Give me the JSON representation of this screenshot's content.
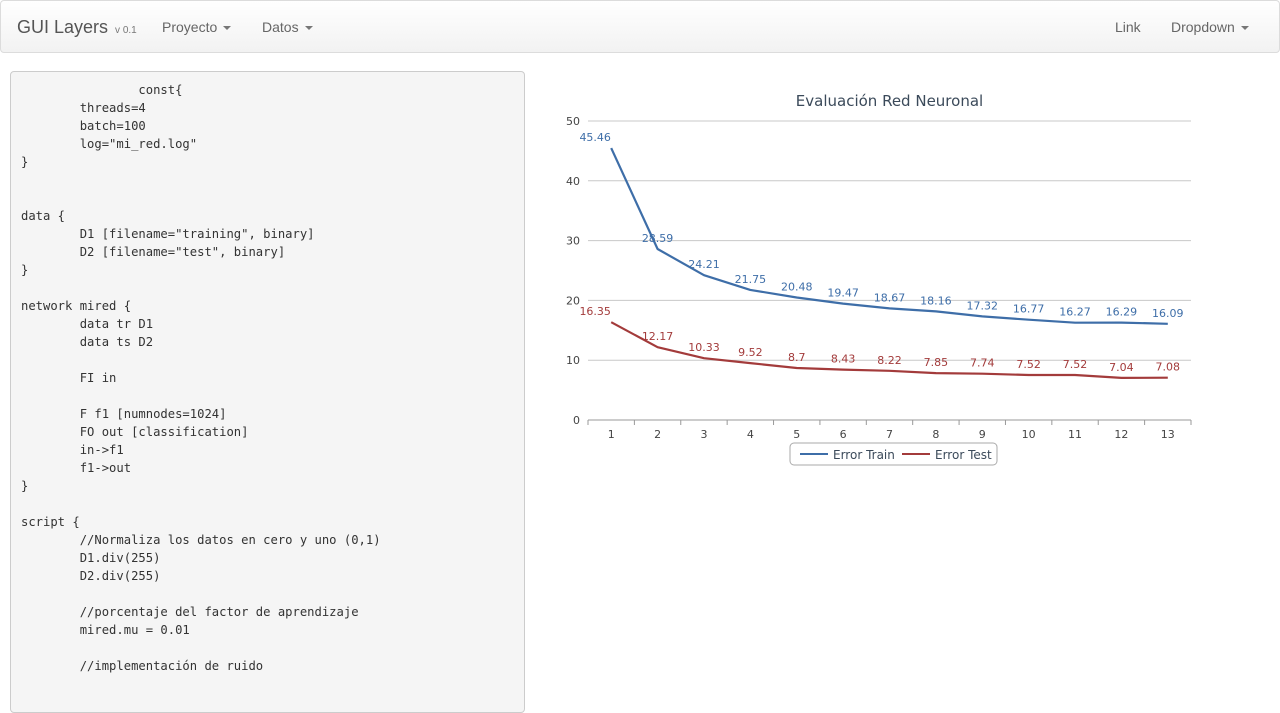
{
  "navbar": {
    "brand": "GUI Layers",
    "version": "v 0.1",
    "menu_proyecto": "Proyecto",
    "menu_datos": "Datos",
    "link": "Link",
    "dropdown": "Dropdown"
  },
  "editor": {
    "code": "\t\tconst{\n\tthreads=4\n\tbatch=100\n\tlog=\"mi_red.log\"\n}\n\n\ndata {\n\tD1 [filename=\"training\", binary]\n\tD2 [filename=\"test\", binary]\n}\n\nnetwork mired {\n\tdata tr D1\n\tdata ts D2\n\n\tFI in\n\n\tF f1 [numnodes=1024]\n\tFO out [classification]\n\tin->f1\n\tf1->out\n}\n\nscript {\n\t//Normaliza los datos en cero y uno (0,1)\n\tD1.div(255)\n\tD2.div(255)\n\n\t//porcentaje del factor de aprendizaje\n\tmired.mu = 0.01\n\n\t//implementación de ruido"
  },
  "chart_data": {
    "type": "line",
    "title": "Evaluación Red Neuronal",
    "xlabel": "",
    "ylabel": "",
    "categories": [
      "1",
      "2",
      "3",
      "4",
      "5",
      "6",
      "7",
      "8",
      "9",
      "10",
      "11",
      "12",
      "13"
    ],
    "ylim": [
      0,
      50
    ],
    "yticks": [
      "0",
      "10",
      "20",
      "30",
      "40",
      "50"
    ],
    "grid": true,
    "legend_position": "bottom",
    "series": [
      {
        "name": "Error Train",
        "color": "#3e6ea8",
        "values": [
          45.46,
          28.59,
          24.21,
          21.75,
          20.48,
          19.47,
          18.67,
          18.16,
          17.32,
          16.77,
          16.27,
          16.29,
          16.09
        ]
      },
      {
        "name": "Error Test",
        "color": "#a33b3b",
        "values": [
          16.35,
          12.17,
          10.33,
          9.52,
          8.7,
          8.43,
          8.22,
          7.85,
          7.74,
          7.52,
          7.52,
          7.04,
          7.08
        ]
      }
    ]
  }
}
